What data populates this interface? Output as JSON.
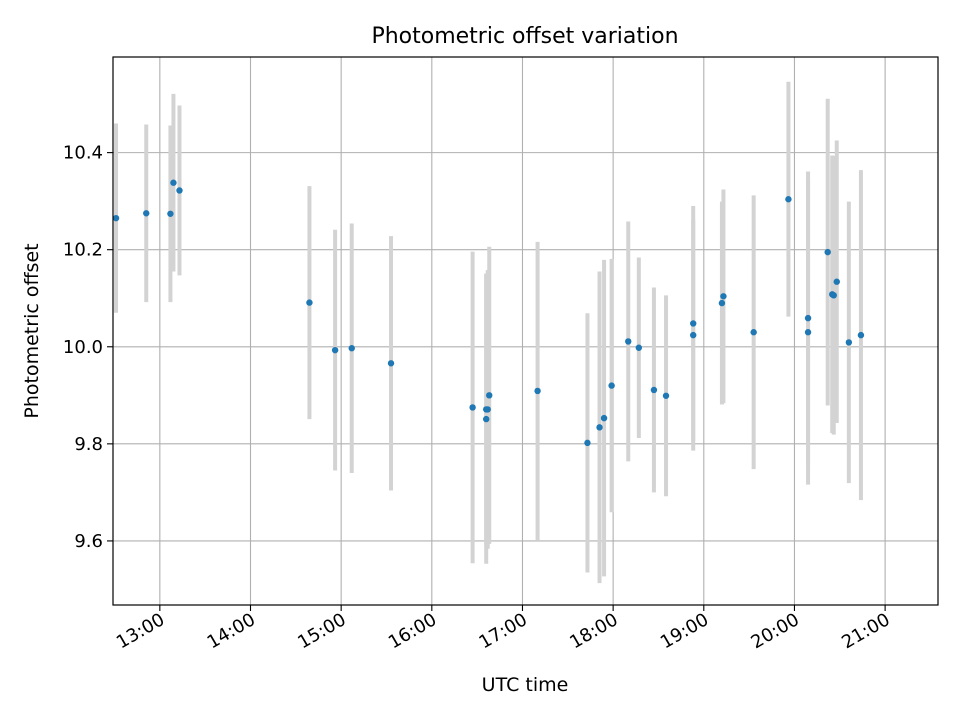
{
  "chart_data": {
    "type": "scatter",
    "title": "Photometric offset variation",
    "xlabel": "UTC time",
    "ylabel": "Photometric offset",
    "x_ticks": [
      "13:00",
      "14:00",
      "15:00",
      "16:00",
      "17:00",
      "18:00",
      "19:00",
      "20:00",
      "21:00"
    ],
    "y_ticks": [
      "9.6",
      "9.8",
      "10.0",
      "10.2",
      "10.4"
    ],
    "xlim": [
      "12:29",
      "21:35"
    ],
    "ylim": [
      9.468,
      10.597
    ],
    "grid": true,
    "marker_color": "#1f77b4",
    "errorbar_color": "#d3d3d3",
    "series": [
      {
        "x": [
          "12:31",
          "12:51",
          "13:07",
          "13:09",
          "13:13",
          "14:39",
          "14:56",
          "15:07",
          "15:33",
          "16:27",
          "16:36",
          "16:36",
          "16:37",
          "16:38",
          "17:10",
          "17:43",
          "17:51",
          "17:54",
          "17:59",
          "18:10",
          "18:17",
          "18:27",
          "18:35",
          "18:53",
          "18:53",
          "19:12",
          "19:13",
          "19:33",
          "19:56",
          "20:09",
          "20:09",
          "20:22",
          "20:25",
          "20:26",
          "20:28",
          "20:36",
          "20:44"
        ],
        "y": [
          10.265,
          10.275,
          10.274,
          10.338,
          10.322,
          10.091,
          9.993,
          9.997,
          9.966,
          9.875,
          9.851,
          9.871,
          9.871,
          9.9,
          9.909,
          9.802,
          9.834,
          9.853,
          9.92,
          10.011,
          9.998,
          9.911,
          9.899,
          10.048,
          10.024,
          10.09,
          10.104,
          10.03,
          10.304,
          10.059,
          10.03,
          10.195,
          10.108,
          10.106,
          10.134,
          10.009,
          10.024
        ],
        "yerr": [
          0.195,
          0.183,
          0.182,
          0.183,
          0.175,
          0.24,
          0.248,
          0.257,
          0.262,
          0.321,
          0.298,
          0.28,
          0.287,
          0.306,
          0.307,
          0.267,
          0.321,
          0.326,
          0.261,
          0.247,
          0.186,
          0.211,
          0.207,
          0.242,
          0.238,
          0.209,
          0.22,
          0.282,
          0.242,
          0.302,
          0.314,
          0.316,
          0.286,
          0.287,
          0.291,
          0.29,
          0.34
        ]
      }
    ]
  }
}
